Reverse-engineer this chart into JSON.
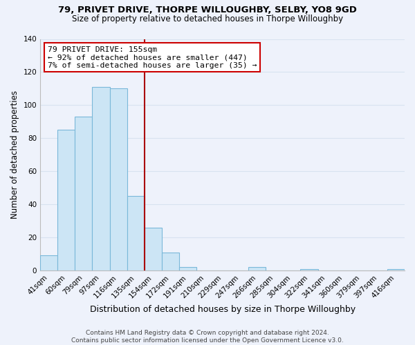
{
  "title": "79, PRIVET DRIVE, THORPE WILLOUGHBY, SELBY, YO8 9GD",
  "subtitle": "Size of property relative to detached houses in Thorpe Willoughby",
  "xlabel": "Distribution of detached houses by size in Thorpe Willoughby",
  "ylabel": "Number of detached properties",
  "bar_labels": [
    "41sqm",
    "60sqm",
    "79sqm",
    "97sqm",
    "116sqm",
    "135sqm",
    "154sqm",
    "172sqm",
    "191sqm",
    "210sqm",
    "229sqm",
    "247sqm",
    "266sqm",
    "285sqm",
    "304sqm",
    "322sqm",
    "341sqm",
    "360sqm",
    "379sqm",
    "397sqm",
    "416sqm"
  ],
  "bar_values": [
    9,
    85,
    93,
    111,
    110,
    45,
    26,
    11,
    2,
    0,
    0,
    0,
    2,
    0,
    0,
    1,
    0,
    0,
    0,
    0,
    1
  ],
  "bar_color": "#cce5f5",
  "bar_edge_color": "#7ab8d9",
  "vline_color": "#aa0000",
  "annotation_title": "79 PRIVET DRIVE: 155sqm",
  "annotation_line1": "← 92% of detached houses are smaller (447)",
  "annotation_line2": "7% of semi-detached houses are larger (35) →",
  "annotation_box_edge_color": "#cc0000",
  "ylim": [
    0,
    140
  ],
  "yticks": [
    0,
    20,
    40,
    60,
    80,
    100,
    120,
    140
  ],
  "footer1": "Contains HM Land Registry data © Crown copyright and database right 2024.",
  "footer2": "Contains public sector information licensed under the Open Government Licence v3.0.",
  "bg_color": "#eef2fb",
  "grid_color": "#d8e2f0",
  "title_fontsize": 9.5,
  "subtitle_fontsize": 8.5,
  "ylabel_fontsize": 8.5,
  "xlabel_fontsize": 9,
  "tick_fontsize": 7.5,
  "annot_fontsize": 8.2,
  "footer_fontsize": 6.5
}
